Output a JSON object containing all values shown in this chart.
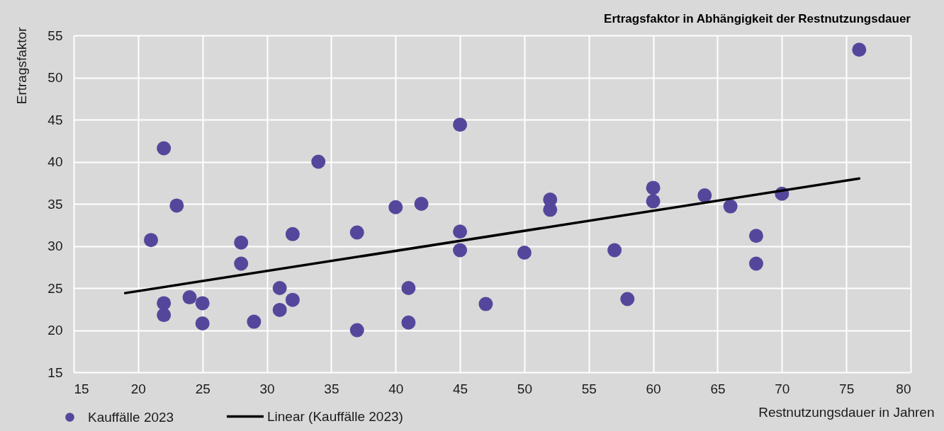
{
  "chart_data": {
    "type": "scatter",
    "title": "Ertragsfaktor in Abhängigkeit der Restnutzungsdauer",
    "xlabel": "Restnutzungsdauer in Jahren",
    "ylabel": "Ertragsfaktor",
    "xlim": [
      15,
      80
    ],
    "xticks": [
      15,
      20,
      25,
      30,
      35,
      40,
      45,
      50,
      55,
      60,
      65,
      70,
      75,
      80
    ],
    "ylim": [
      15,
      55
    ],
    "yticks": [
      15,
      20,
      25,
      30,
      35,
      40,
      45,
      50,
      55
    ],
    "grid": true,
    "legend": "bottom left",
    "series": [
      {
        "name": "Kauffälle 2023",
        "marker": "circle",
        "color": "#54479b",
        "x": [
          21,
          22,
          22,
          22,
          23,
          24,
          25,
          25,
          28,
          28,
          29,
          31,
          31,
          32,
          32,
          34,
          37,
          37,
          40,
          41,
          41,
          42,
          45,
          45,
          45,
          47,
          50,
          52,
          52,
          57,
          58,
          60,
          60,
          64,
          66,
          68,
          68,
          70,
          76
        ],
        "values": [
          30.7,
          41.6,
          23.2,
          21.8,
          34.8,
          23.9,
          23.2,
          20.8,
          30.4,
          27.9,
          21.0,
          25.0,
          22.4,
          31.4,
          23.6,
          40.0,
          31.6,
          20.0,
          34.6,
          25.0,
          20.9,
          35.0,
          44.4,
          31.7,
          29.5,
          23.1,
          29.2,
          35.5,
          34.3,
          29.5,
          23.7,
          36.9,
          35.3,
          36.0,
          34.7,
          31.2,
          27.9,
          36.2,
          53.3
        ]
      },
      {
        "name": "Linear (Kauffälle 2023)",
        "type": "line",
        "line_style": "solid",
        "color": "#000000",
        "x": [
          19,
          76
        ],
        "values": [
          24.4,
          38.0
        ]
      }
    ]
  }
}
